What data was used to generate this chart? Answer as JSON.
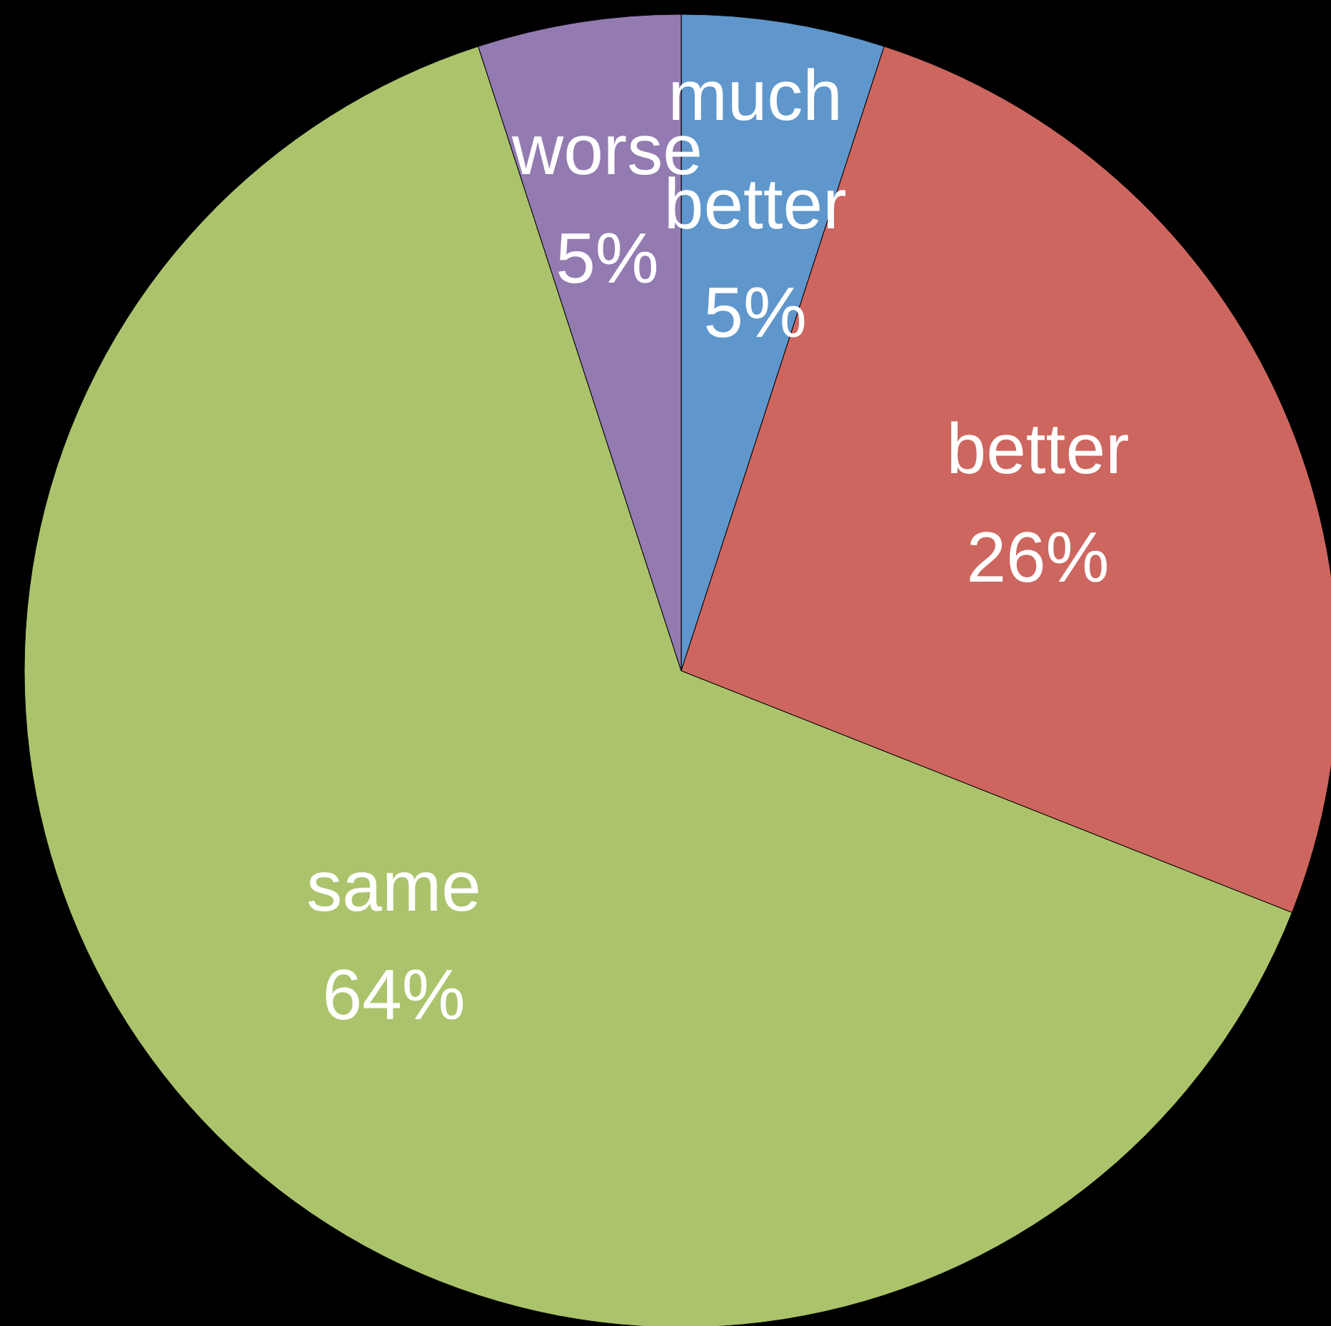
{
  "chart_data": {
    "type": "pie",
    "categories": [
      "much better",
      "better",
      "same",
      "worse"
    ],
    "values": [
      5,
      26,
      64,
      5
    ],
    "colors": [
      "#5f97cc",
      "#cd665f",
      "#abc46c",
      "#937bb1"
    ],
    "value_labels": [
      "5%",
      "26%",
      "64%",
      "5%"
    ]
  }
}
